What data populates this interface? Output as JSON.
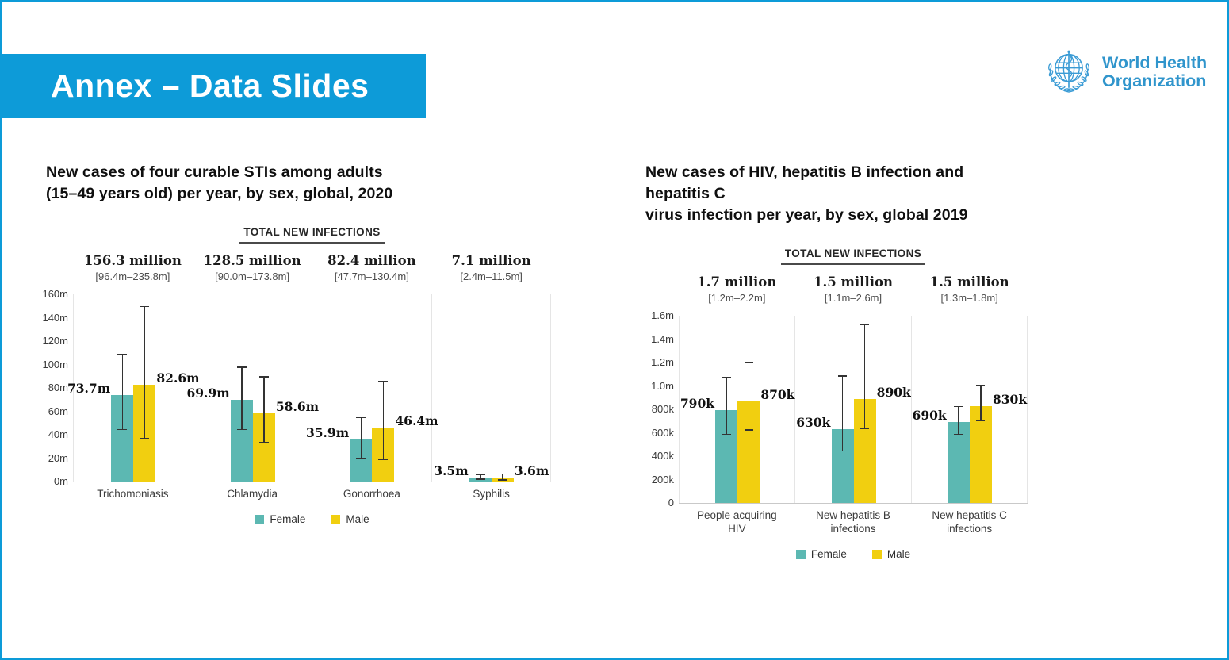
{
  "slide": {
    "title": "Annex – Data Slides",
    "banner_color": "#0d9bd8",
    "border_color": "#0d9bd8"
  },
  "logo": {
    "line1": "World Health",
    "line2": "Organization",
    "color": "#3095cc"
  },
  "legend": {
    "female": "Female",
    "male": "Male"
  },
  "colors": {
    "female_bar": "#5cb8b2",
    "male_bar": "#f1cf10",
    "error_bar": "#333333",
    "axis_line": "#c9c9c9",
    "panel_border": "#e5e5e5"
  },
  "chart_data": [
    {
      "type": "bar",
      "title": "New cases of four curable STIs among adults\n(15–49 years old) per year, by sex, global, 2020",
      "header": "TOTAL NEW INFECTIONS",
      "series_names": [
        "Female",
        "Male"
      ],
      "legend_position": "bottom-center",
      "grid": false,
      "value_unit": "millions (m)",
      "ylim": [
        0,
        160
      ],
      "yticks": [
        {
          "value": 0,
          "label": "0m"
        },
        {
          "value": 20,
          "label": "20m"
        },
        {
          "value": 40,
          "label": "40m"
        },
        {
          "value": 60,
          "label": "60m"
        },
        {
          "value": 80,
          "label": "80m"
        },
        {
          "value": 100,
          "label": "100m"
        },
        {
          "value": 120,
          "label": "120m"
        },
        {
          "value": 140,
          "label": "140m"
        },
        {
          "value": 160,
          "label": "160m"
        }
      ],
      "categories": [
        {
          "label": "Trichomoniasis",
          "total": "156.3 million",
          "total_ci": "[96.4m–235.8m]",
          "female": {
            "value": 73.7,
            "label": "73.7m",
            "ci": [
              44,
              109
            ]
          },
          "male": {
            "value": 82.6,
            "label": "82.6m",
            "ci": [
              36,
              150
            ]
          }
        },
        {
          "label": "Chlamydia",
          "total": "128.5 million",
          "total_ci": "[90.0m–173.8m]",
          "female": {
            "value": 69.9,
            "label": "69.9m",
            "ci": [
              44,
              98
            ]
          },
          "male": {
            "value": 58.6,
            "label": "58.6m",
            "ci": [
              33,
              90
            ]
          }
        },
        {
          "label": "Gonorrhoea",
          "total": "82.4 million",
          "total_ci": "[47.7m–130.4m]",
          "female": {
            "value": 35.9,
            "label": "35.9m",
            "ci": [
              19,
              55
            ]
          },
          "male": {
            "value": 46.4,
            "label": "46.4m",
            "ci": [
              18,
              86
            ]
          }
        },
        {
          "label": "Syphilis",
          "total": "7.1 million",
          "total_ci": "[2.4m–11.5m]",
          "female": {
            "value": 3.5,
            "label": "3.5m",
            "ci": [
              1.5,
              6.5
            ]
          },
          "male": {
            "value": 3.6,
            "label": "3.6m",
            "ci": [
              1,
              7
            ]
          }
        }
      ]
    },
    {
      "type": "bar",
      "title": "New cases of HIV, hepatitis B infection and hepatitis C\nvirus infection per year, by sex, global 2019",
      "header": "TOTAL NEW INFECTIONS",
      "series_names": [
        "Female",
        "Male"
      ],
      "legend_position": "bottom-center",
      "grid": false,
      "value_unit": "thousands (k)",
      "ylim": [
        0,
        1600
      ],
      "yticks": [
        {
          "value": 0,
          "label": "0"
        },
        {
          "value": 200,
          "label": "200k"
        },
        {
          "value": 400,
          "label": "400k"
        },
        {
          "value": 600,
          "label": "600k"
        },
        {
          "value": 800,
          "label": "800k"
        },
        {
          "value": 1000,
          "label": "1.0m"
        },
        {
          "value": 1200,
          "label": "1.2m"
        },
        {
          "value": 1400,
          "label": "1.4m"
        },
        {
          "value": 1600,
          "label": "1.6m"
        }
      ],
      "categories": [
        {
          "label": "People acquiring\nHIV",
          "total": "1.7 million",
          "total_ci": "[1.2m–2.2m]",
          "female": {
            "value": 790,
            "label": "790k",
            "ci": [
              580,
              1080
            ]
          },
          "male": {
            "value": 870,
            "label": "870k",
            "ci": [
              620,
              1210
            ]
          }
        },
        {
          "label": "New hepatitis B\ninfections",
          "total": "1.5 million",
          "total_ci": "[1.1m–2.6m]",
          "female": {
            "value": 630,
            "label": "630k",
            "ci": [
              440,
              1090
            ]
          },
          "male": {
            "value": 890,
            "label": "890k",
            "ci": [
              630,
              1530
            ]
          }
        },
        {
          "label": "New hepatitis C\ninfections",
          "total": "1.5 million",
          "total_ci": "[1.3m–1.8m]",
          "female": {
            "value": 690,
            "label": "690k",
            "ci": [
              580,
              830
            ]
          },
          "male": {
            "value": 830,
            "label": "830k",
            "ci": [
              700,
              1010
            ]
          }
        }
      ]
    }
  ]
}
